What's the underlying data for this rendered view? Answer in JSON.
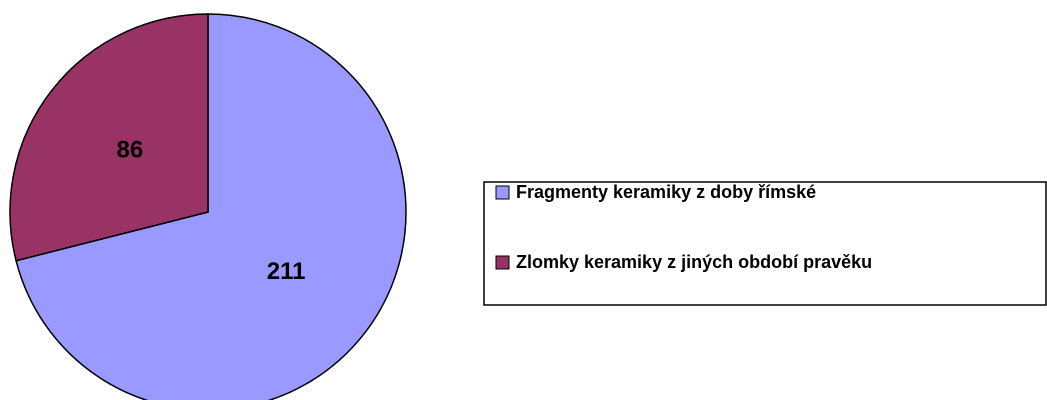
{
  "chart_data": {
    "type": "pie",
    "categories": [
      "Fragmenty keramiky z doby římské",
      "Zlomky keramiky z jiných období pravěku"
    ],
    "values": [
      211,
      86
    ],
    "colors": [
      "#9999ff",
      "#993366"
    ],
    "legend": "right"
  }
}
